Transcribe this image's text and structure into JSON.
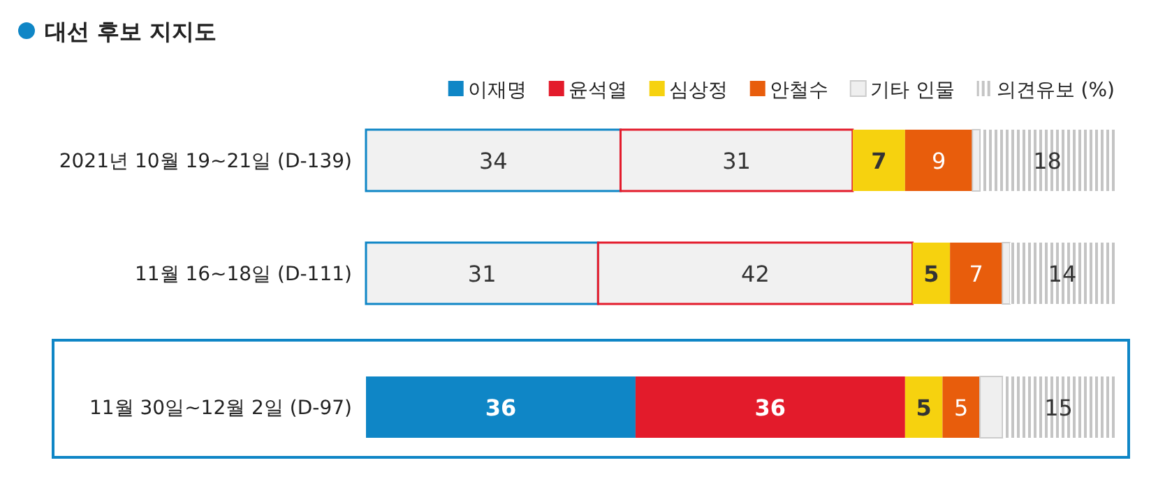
{
  "chart_data": {
    "type": "bar",
    "orientation": "horizontal",
    "stacked": true,
    "title": "대선 후보 지지도",
    "legend": "top right",
    "categories": [
      "2021년 10월 19~21일 (D-139)",
      "11월 16~18일 (D-111)",
      "11월 30일~12월 2일 (D-97)"
    ],
    "series": [
      {
        "name": "이재명",
        "color": "#0f86c6",
        "colors": [
          "#f1f1f1",
          "#f1f1f1",
          "#0f86c6"
        ],
        "values": [
          34,
          31,
          36
        ],
        "value_labels": [
          "34",
          "31",
          "36"
        ]
      },
      {
        "name": "윤석열",
        "color": "#e31b2b",
        "colors": [
          "#f1f1f1",
          "#f1f1f1",
          "#e31b2b"
        ],
        "values": [
          31,
          42,
          36
        ],
        "value_labels": [
          "31",
          "42",
          "36"
        ]
      },
      {
        "name": "심상정",
        "color": "#f6d20f",
        "values": [
          7,
          5,
          5
        ],
        "value_labels": [
          "7",
          "5",
          "5"
        ]
      },
      {
        "name": "안철수",
        "color": "#e85d0c",
        "values": [
          9,
          7,
          5
        ],
        "value_labels": [
          "9",
          "7",
          "5"
        ]
      },
      {
        "name": "기타 인물",
        "color": "#efefef",
        "values": [
          1,
          1,
          3
        ],
        "value_labels": [
          null,
          null,
          null
        ]
      },
      {
        "name": "의견유보 (%)",
        "color": "#c4c4c4",
        "values": [
          18,
          14,
          15
        ],
        "value_labels": [
          "18",
          "14",
          "15"
        ]
      }
    ]
  }
}
